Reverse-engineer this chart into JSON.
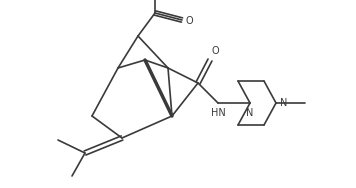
{
  "background": "#ffffff",
  "figsize": [
    3.56,
    1.88
  ],
  "dpi": 100,
  "bond_color": "#3a3a3a",
  "text_color": "#3a3a3a",
  "bond_lw": 1.2,
  "xlim": [
    0,
    3.56
  ],
  "ylim": [
    0,
    1.88
  ]
}
